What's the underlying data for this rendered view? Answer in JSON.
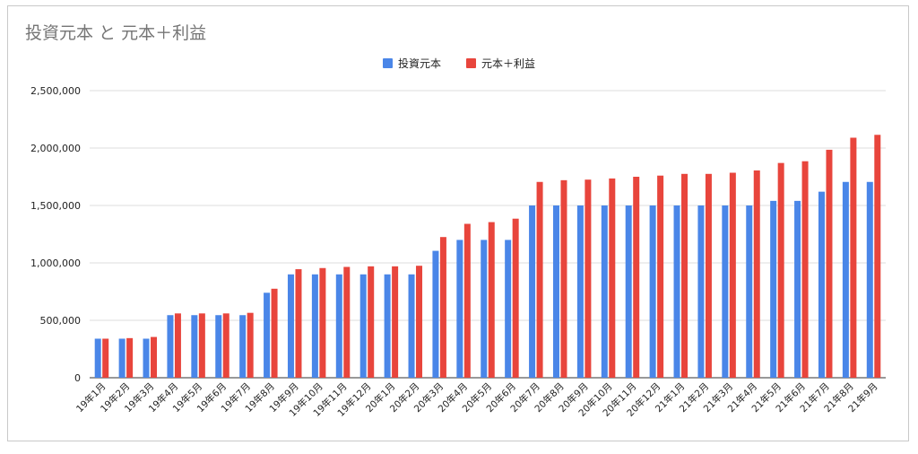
{
  "chart_data": {
    "type": "bar",
    "title": "投資元本 と 元本＋利益",
    "categories": [
      "19年1月",
      "19年2月",
      "19年3月",
      "19年4月",
      "19年5月",
      "19年6月",
      "19年7月",
      "19年8月",
      "19年9月",
      "19年10月",
      "19年11月",
      "19年12月",
      "20年1月",
      "20年2月",
      "20年3月",
      "20年4月",
      "20年5月",
      "20年6月",
      "20年7月",
      "20年8月",
      "20年9月",
      "20年10月",
      "20年11月",
      "20年12月",
      "21年1月",
      "21年2月",
      "21年3月",
      "21年4月",
      "21年5月",
      "21年6月",
      "21年7月",
      "21年8月",
      "21年9月"
    ],
    "series": [
      {
        "name": "投資元本",
        "color": "#4a86e8",
        "values": [
          340000,
          340000,
          340000,
          545000,
          545000,
          545000,
          545000,
          740000,
          900000,
          900000,
          900000,
          900000,
          900000,
          900000,
          1105000,
          1200000,
          1200000,
          1200000,
          1500000,
          1500000,
          1500000,
          1500000,
          1500000,
          1500000,
          1500000,
          1500000,
          1500000,
          1500000,
          1540000,
          1540000,
          1620000,
          1705000,
          1705000
        ]
      },
      {
        "name": "元本＋利益",
        "color": "#e8453c",
        "values": [
          340000,
          345000,
          355000,
          560000,
          560000,
          560000,
          565000,
          775000,
          945000,
          955000,
          965000,
          970000,
          970000,
          975000,
          1225000,
          1340000,
          1355000,
          1385000,
          1705000,
          1720000,
          1725000,
          1735000,
          1750000,
          1760000,
          1775000,
          1775000,
          1785000,
          1805000,
          1870000,
          1885000,
          1985000,
          2090000,
          2115000
        ]
      }
    ],
    "yticks": [
      "0",
      "500,000",
      "1,000,000",
      "1,500,000",
      "2,000,000",
      "2,500,000"
    ],
    "ylim": [
      0,
      2500000
    ],
    "grid": true,
    "legend_position": "top-center"
  }
}
